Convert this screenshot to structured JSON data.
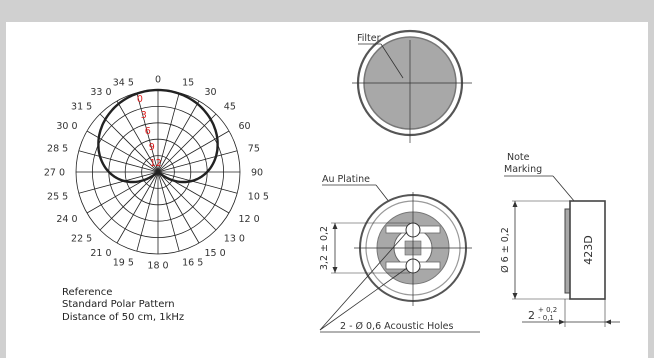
{
  "polar": {
    "angle_labels": [
      "0",
      "15",
      "30",
      "45",
      "60",
      "75",
      "90",
      "10 5",
      "12 0",
      "13 0",
      "15 0",
      "16 5",
      "18 0",
      "19 5",
      "21 0",
      "22 5",
      "24 0",
      "25 5",
      "27 0",
      "28 5",
      "30 0",
      "31 5",
      "33 0",
      "34 5"
    ],
    "db_labels": [
      "0",
      "3",
      "6",
      "9",
      "12"
    ],
    "caption_line1": "Reference",
    "caption_line2": "Standard Polar Pattern",
    "caption_line3": "Distance of 50 cm, 1kHz",
    "pattern_color": "#222222",
    "db_label_color": "#e02020"
  },
  "filter_view": {
    "label": "Filter",
    "fill_color": "#a8a8a8"
  },
  "platine_view": {
    "label": "Au Platine",
    "dimension_height": "3,2 ± 0,2",
    "holes_label": "2 - Ø 0,6 Acoustic Holes"
  },
  "side_view": {
    "note_line1": "Note",
    "note_line2": "Marking",
    "marking_text": "423D",
    "diameter_dim": "Ø 6 ± 0,2",
    "thickness_dim": "2",
    "thickness_tol_upper": "+ 0,2",
    "thickness_tol_lower": "- 0,1"
  }
}
